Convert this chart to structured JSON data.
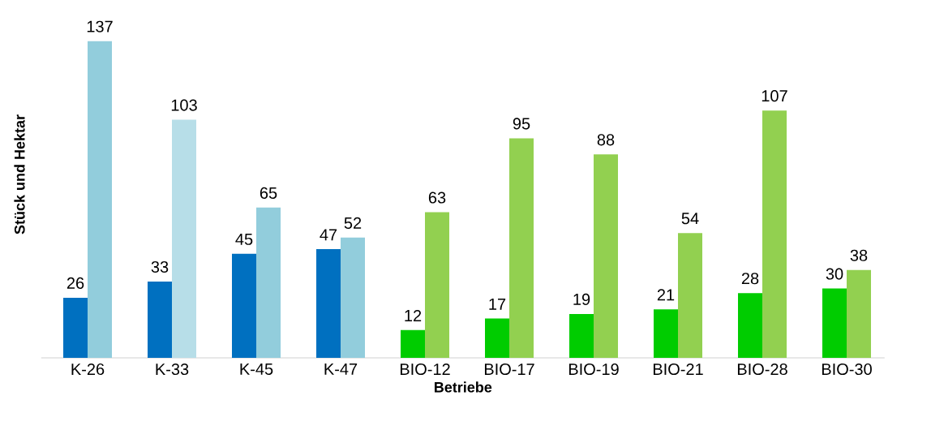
{
  "chart_data": {
    "type": "bar",
    "xlabel": "Betriebe",
    "ylabel": "Stück und Hektar",
    "categories": [
      "K-26",
      "K-33",
      "K-45",
      "K-47",
      "BIO-12",
      "BIO-17",
      "BIO-19",
      "BIO-21",
      "BIO-28",
      "BIO-30"
    ],
    "series": [
      {
        "colors": [
          "#0070c0",
          "#0070c0",
          "#0070c0",
          "#0070c0",
          "#00cc00",
          "#00cc00",
          "#00cc00",
          "#00cc00",
          "#00cc00",
          "#00cc00"
        ],
        "values": [
          26,
          33,
          45,
          47,
          12,
          17,
          19,
          21,
          28,
          30
        ]
      },
      {
        "colors": [
          "#92cddc",
          "#b7dee8",
          "#92cddc",
          "#92cddc",
          "#92d050",
          "#92d050",
          "#92d050",
          "#92d050",
          "#92d050",
          "#92d050"
        ],
        "values": [
          137,
          103,
          65,
          52,
          63,
          95,
          88,
          54,
          107,
          38
        ]
      }
    ],
    "data_labels": true
  }
}
